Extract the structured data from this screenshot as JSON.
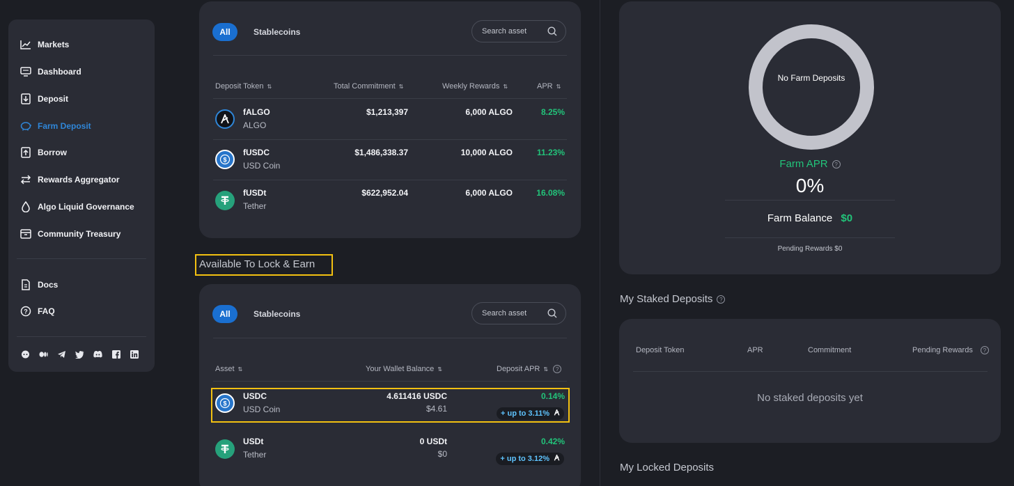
{
  "sidebar": {
    "nav": [
      {
        "label": "Markets",
        "icon": "chart-line-icon"
      },
      {
        "label": "Dashboard",
        "icon": "monitor-icon"
      },
      {
        "label": "Deposit",
        "icon": "deposit-icon"
      },
      {
        "label": "Farm Deposit",
        "icon": "piggy-bank-icon",
        "active": true
      },
      {
        "label": "Borrow",
        "icon": "borrow-icon"
      },
      {
        "label": "Rewards Aggregator",
        "icon": "swap-arrows-icon"
      },
      {
        "label": "Algo Liquid Governance",
        "icon": "drop-icon"
      },
      {
        "label": "Community Treasury",
        "icon": "treasury-icon"
      }
    ],
    "secondary": [
      {
        "label": "Docs",
        "icon": "document-icon"
      },
      {
        "label": "FAQ",
        "icon": "question-icon"
      }
    ],
    "social": [
      "reddit-icon",
      "medium-icon",
      "telegram-icon",
      "twitter-icon",
      "discord-icon",
      "facebook-icon",
      "linkedin-icon"
    ]
  },
  "farm_table": {
    "tabs": {
      "all": "All",
      "stable": "Stablecoins"
    },
    "search_placeholder": "Search asset",
    "headers": [
      "Deposit Token",
      "Total Commitment",
      "Weekly Rewards",
      "APR"
    ],
    "rows": [
      {
        "token": "fALGO",
        "sub": "ALGO",
        "commitment": "$1,213,397",
        "rewards": "6,000 ALGO",
        "apr": "8.25%",
        "icon": "algo-icon"
      },
      {
        "token": "fUSDC",
        "sub": "USD Coin",
        "commitment": "$1,486,338.37",
        "rewards": "10,000 ALGO",
        "apr": "11.23%",
        "icon": "usdc-icon"
      },
      {
        "token": "fUSDt",
        "sub": "Tether",
        "commitment": "$622,952.04",
        "rewards": "6,000 ALGO",
        "apr": "16.08%",
        "icon": "tether-icon"
      }
    ]
  },
  "lock_section": {
    "title": "Available To Lock & Earn",
    "tabs": {
      "all": "All",
      "stable": "Stablecoins"
    },
    "search_placeholder": "Search asset",
    "headers": [
      "Asset",
      "Your Wallet Balance",
      "Deposit APR"
    ],
    "rows": [
      {
        "asset": "USDC",
        "sub": "USD Coin",
        "balance": "4.611416 USDC",
        "balance_usd": "$4.61",
        "apr": "0.14%",
        "boost": "+ up to 3.11%",
        "icon": "usdc-icon"
      },
      {
        "asset": "USDt",
        "sub": "Tether",
        "balance": "0 USDt",
        "balance_usd": "$0",
        "apr": "0.42%",
        "boost": "+ up to 3.12%",
        "icon": "tether-icon"
      }
    ]
  },
  "farm_summary": {
    "ring_text": "No Farm Deposits",
    "apr_label": "Farm APR",
    "apr_value": "0%",
    "balance_label": "Farm Balance",
    "balance_value": "$0",
    "pending": "Pending Rewards $0"
  },
  "staked": {
    "title": "My Staked Deposits",
    "headers": [
      "Deposit Token",
      "APR",
      "Commitment",
      "Pending Rewards"
    ],
    "empty": "No staked deposits yet"
  },
  "locked": {
    "title": "My Locked Deposits"
  },
  "colors": {
    "accent": "#2f86d8",
    "green": "#22c47a",
    "highlight": "#f3c111",
    "boost": "#5fc4ff"
  }
}
